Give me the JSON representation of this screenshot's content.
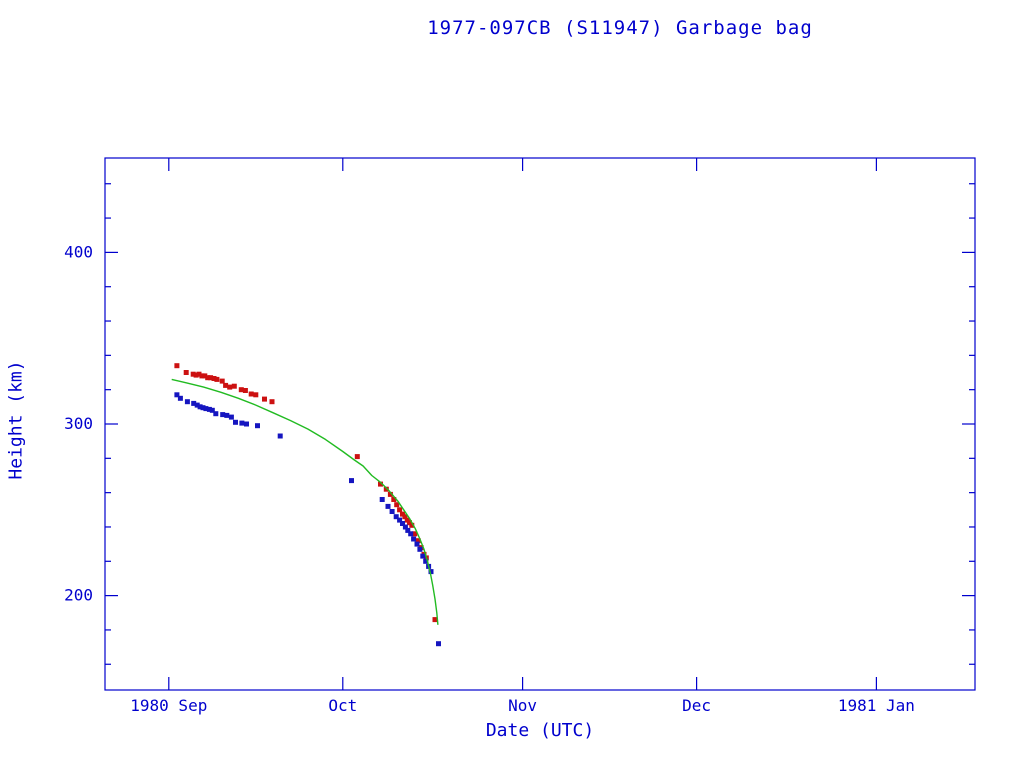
{
  "chart_data": {
    "type": "scatter",
    "title": "1977-097CB (S11947) Garbage bag",
    "xlabel": "Date (UTC)",
    "ylabel": "Height (km)",
    "axis_color": "#0000cd",
    "grid": false,
    "legend": "none",
    "x_axis": {
      "domain_days": [
        -11,
        139
      ],
      "tick_days": [
        0,
        30,
        61,
        91,
        122
      ],
      "tick_labels": [
        "1980 Sep",
        "Oct",
        "Nov",
        "Dec",
        "1981 Jan"
      ]
    },
    "y_axis": {
      "domain": [
        145,
        455
      ],
      "major": [
        200,
        300,
        400
      ],
      "minor_step": 20
    },
    "series": [
      {
        "name": "apogee-height",
        "type": "scatter",
        "marker": "square",
        "color": "#cc1111",
        "points": [
          [
            1.4,
            334
          ],
          [
            3.0,
            330
          ],
          [
            4.2,
            329
          ],
          [
            4.7,
            328.5
          ],
          [
            5.2,
            329
          ],
          [
            5.7,
            328
          ],
          [
            6.2,
            328
          ],
          [
            6.7,
            327
          ],
          [
            7.2,
            327
          ],
          [
            7.8,
            326.5
          ],
          [
            8.3,
            326
          ],
          [
            9.2,
            325
          ],
          [
            9.8,
            322.5
          ],
          [
            10.5,
            321.5
          ],
          [
            11.3,
            322
          ],
          [
            12.5,
            320
          ],
          [
            13.2,
            319.5
          ],
          [
            14.2,
            317.5
          ],
          [
            15.0,
            317
          ],
          [
            16.5,
            314.5
          ],
          [
            17.8,
            313
          ],
          [
            32.5,
            281
          ],
          [
            36.5,
            265
          ],
          [
            37.5,
            262
          ],
          [
            38.2,
            259
          ],
          [
            38.8,
            256
          ],
          [
            39.3,
            253
          ],
          [
            39.8,
            250
          ],
          [
            40.3,
            247.5
          ],
          [
            40.7,
            246
          ],
          [
            41.1,
            244
          ],
          [
            41.5,
            242.5
          ],
          [
            41.9,
            241
          ],
          [
            42.4,
            236
          ],
          [
            43.0,
            232
          ],
          [
            43.5,
            228
          ],
          [
            44.0,
            224
          ],
          [
            44.4,
            222
          ],
          [
            45.9,
            186
          ]
        ]
      },
      {
        "name": "perigee-height",
        "type": "scatter",
        "marker": "square",
        "color": "#1515c0",
        "points": [
          [
            1.4,
            317
          ],
          [
            2.0,
            315
          ],
          [
            3.2,
            313
          ],
          [
            4.3,
            312
          ],
          [
            4.9,
            311
          ],
          [
            5.4,
            310
          ],
          [
            5.9,
            309.5
          ],
          [
            6.4,
            309
          ],
          [
            7.0,
            308.5
          ],
          [
            7.5,
            308
          ],
          [
            8.1,
            306
          ],
          [
            9.3,
            305.5
          ],
          [
            10.0,
            305
          ],
          [
            10.8,
            304
          ],
          [
            11.5,
            301
          ],
          [
            12.6,
            300.5
          ],
          [
            13.4,
            300
          ],
          [
            15.3,
            299
          ],
          [
            19.2,
            293
          ],
          [
            31.5,
            267
          ],
          [
            36.8,
            256
          ],
          [
            37.8,
            252
          ],
          [
            38.5,
            249
          ],
          [
            39.2,
            246
          ],
          [
            39.8,
            244
          ],
          [
            40.3,
            242
          ],
          [
            40.8,
            240
          ],
          [
            41.2,
            238
          ],
          [
            41.7,
            236
          ],
          [
            42.2,
            233
          ],
          [
            42.8,
            230
          ],
          [
            43.3,
            227
          ],
          [
            43.8,
            223
          ],
          [
            44.3,
            220
          ],
          [
            44.8,
            217
          ],
          [
            45.2,
            214
          ],
          [
            46.5,
            172
          ]
        ]
      },
      {
        "name": "model-height",
        "type": "line",
        "color": "#22bb22",
        "points": [
          [
            0.5,
            326
          ],
          [
            3,
            324
          ],
          [
            6,
            321.5
          ],
          [
            9,
            318.5
          ],
          [
            12,
            315
          ],
          [
            15,
            311
          ],
          [
            18,
            306.5
          ],
          [
            21,
            302
          ],
          [
            24,
            297
          ],
          [
            27,
            291
          ],
          [
            30,
            284
          ],
          [
            32,
            279
          ],
          [
            33.5,
            275.5
          ],
          [
            35,
            270
          ],
          [
            36.5,
            266
          ],
          [
            38,
            261
          ],
          [
            39.5,
            255
          ],
          [
            40.5,
            250
          ],
          [
            41.5,
            245
          ],
          [
            42.5,
            239
          ],
          [
            43.3,
            233
          ],
          [
            44,
            227
          ],
          [
            44.6,
            220
          ],
          [
            45.1,
            213
          ],
          [
            45.5,
            206
          ],
          [
            45.9,
            198
          ],
          [
            46.2,
            190
          ],
          [
            46.4,
            183
          ]
        ]
      }
    ]
  }
}
